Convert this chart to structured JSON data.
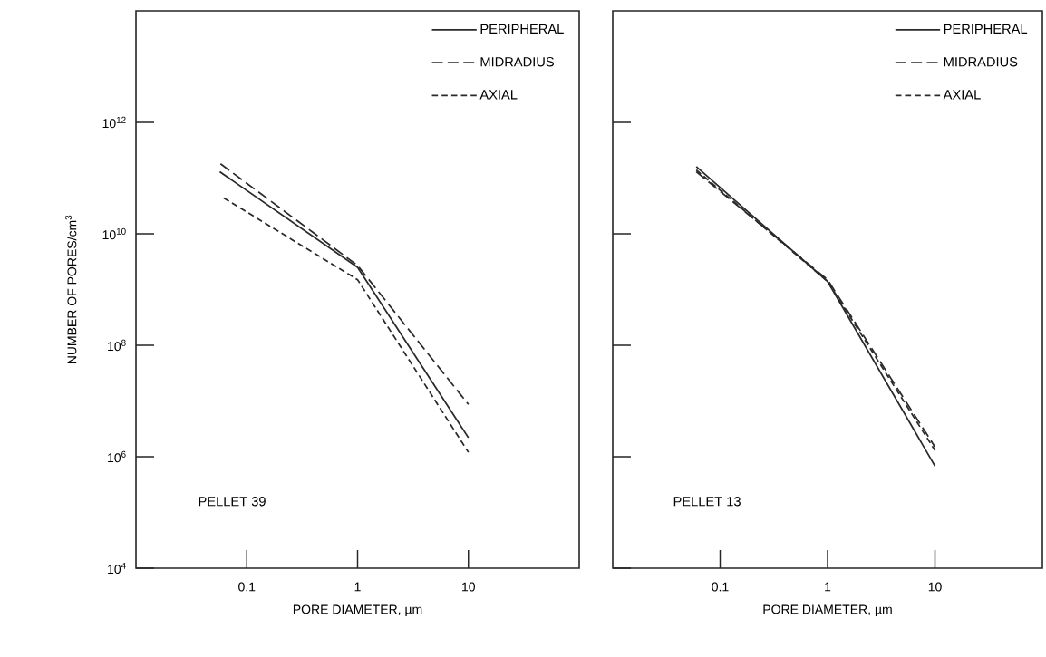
{
  "chart_data": [
    {
      "type": "line",
      "xlabel": "PORE DIAMETER, µm",
      "ylabel": "NUMBER OF PORES/cm$^{3}$",
      "log": "xy",
      "legend": "top right",
      "xlim": [
        0.01,
        100
      ],
      "ylim": [
        10000,
        100000000000000.0
      ],
      "xticks": [
        0.1,
        1,
        10
      ],
      "yticks": [
        {
          "value": 10000,
          "label": "10$^{4}$"
        },
        {
          "value": 1000000,
          "label": "10$^{6}$"
        },
        {
          "value": 100000000,
          "label": "10$^{8}$"
        },
        {
          "value": 10000000000,
          "label": "10$^{10}$"
        },
        {
          "value": 1000000000000,
          "label": "10$^{12}$"
        }
      ],
      "annotations": [
        "PELLET 39"
      ],
      "series": [
        {
          "name": "PERIPHERAL",
          "color": "#2a2a2a",
          "line_style": "solid",
          "x": [
            0.057,
            1,
            10
          ],
          "values": [
            130000000000.0,
            2500000000.0,
            2200000.0
          ]
        },
        {
          "name": "MIDRADIUS",
          "color": "#2a2a2a",
          "line_style": "dashed",
          "x": [
            0.058,
            1,
            10
          ],
          "values": [
            180000000000.0,
            2700000000.0,
            8700000.0
          ]
        },
        {
          "name": "AXIAL",
          "color": "#2a2a2a",
          "line_style": "dashed",
          "x": [
            0.062,
            1,
            10
          ],
          "values": [
            44000000000.0,
            1500000000.0,
            1200000.0
          ]
        }
      ]
    },
    {
      "type": "line",
      "xlabel": "PORE DIAMETER, µm",
      "log": "xy",
      "legend": "top right",
      "tick_labels": "x",
      "xlim": [
        0.01,
        100
      ],
      "ylim": [
        10000,
        100000000000000.0
      ],
      "xticks": [
        0.1,
        1,
        10
      ],
      "yticks": [
        {
          "value": 10000,
          "label": null
        },
        {
          "value": 1000000,
          "label": null
        },
        {
          "value": 100000000,
          "label": null
        },
        {
          "value": 10000000000,
          "label": null
        },
        {
          "value": 1000000000000,
          "label": null
        }
      ],
      "annotations": [
        "PELLET 13"
      ],
      "series": [
        {
          "name": "PERIPHERAL",
          "color": "#2a2a2a",
          "line_style": "solid",
          "x": [
            0.06,
            1,
            10
          ],
          "values": [
            160000000000.0,
            1400000000.0,
            680000.0
          ]
        },
        {
          "name": "MIDRADIUS",
          "color": "#2a2a2a",
          "line_style": "dashed",
          "x": [
            0.06,
            1,
            10
          ],
          "values": [
            130000000000.0,
            1500000000.0,
            1500000.0
          ]
        },
        {
          "name": "AXIAL",
          "color": "#2a2a2a",
          "line_style": "dashed",
          "x": [
            0.06,
            1,
            10
          ],
          "values": [
            140000000000.0,
            1400000000.0,
            1300000.0
          ]
        }
      ]
    }
  ]
}
